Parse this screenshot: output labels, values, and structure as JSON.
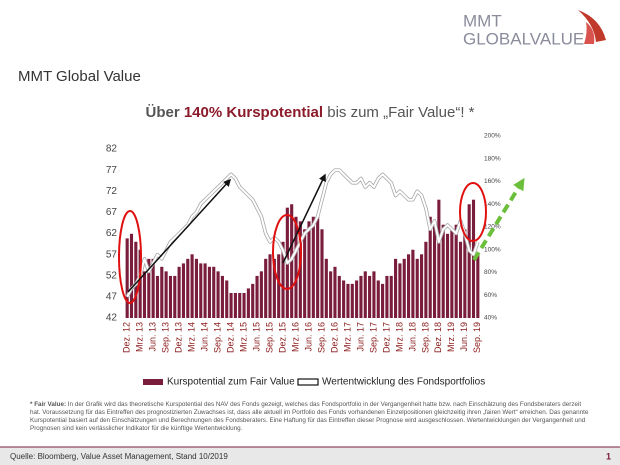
{
  "header": {
    "logo_line1": "MMT",
    "logo_line2": "GLOBALVALUE",
    "slide_title": "MMT Global Value"
  },
  "chart_data": {
    "type": "bar_line",
    "title": [
      "Über ",
      "140% Kurspotential",
      " bis zum „Fair Value“! *"
    ],
    "categories": [
      "Dez. 12",
      null,
      null,
      "Mrz. 13",
      null,
      null,
      "Jun. 13",
      null,
      null,
      "Sep. 13",
      null,
      null,
      "Dez. 13",
      null,
      null,
      "Mrz. 14",
      null,
      null,
      "Jun. 14",
      null,
      null,
      "Sep. 14",
      null,
      null,
      "Dez. 14",
      null,
      null,
      "Mrz. 15",
      null,
      null,
      "Jun. 15",
      null,
      null,
      "Sep. 15",
      null,
      null,
      "Dez. 15",
      null,
      null,
      "Mrz. 16",
      null,
      null,
      "Jun. 16",
      null,
      null,
      "Sep. 16",
      null,
      null,
      "Dez. 16",
      null,
      null,
      "Mrz. 17",
      null,
      null,
      "Jun. 17",
      null,
      null,
      "Sep. 17",
      null,
      null,
      "Dez. 17",
      null,
      null,
      "Mrz. 18",
      null,
      null,
      "Jun. 18",
      null,
      null,
      "Sep. 18",
      null,
      null,
      "Dez. 18",
      null,
      null,
      "Mrz. 19",
      null,
      null,
      "Jun. 19",
      null,
      null,
      "Sep. 19"
    ],
    "series": [
      {
        "name": "Kurspotential zum Fair Value",
        "color": "#7a1c3c",
        "axis": "y2",
        "kind": "bar",
        "values": [
          110,
          114,
          107,
          100,
          81,
          92,
          92,
          77,
          85,
          81,
          77,
          77,
          85,
          88,
          92,
          96,
          92,
          88,
          88,
          85,
          85,
          81,
          77,
          73,
          62,
          62,
          62,
          62,
          66,
          70,
          77,
          81,
          92,
          96,
          92,
          96,
          107,
          137,
          140,
          129,
          125,
          118,
          125,
          129,
          129,
          118,
          92,
          81,
          85,
          77,
          73,
          70,
          70,
          73,
          77,
          81,
          77,
          81,
          73,
          70,
          77,
          77,
          92,
          88,
          92,
          96,
          100,
          92,
          96,
          107,
          129,
          122,
          144,
          122,
          114,
          118,
          122,
          107,
          118,
          140,
          144,
          96
        ]
      },
      {
        "name": "Wertentwicklung des Fondsportfolios",
        "color": "#ffffff",
        "axis": "y",
        "kind": "line",
        "values": [
          47,
          49,
          50,
          52,
          56,
          53,
          55,
          57,
          56,
          58,
          60,
          61,
          62,
          63,
          64,
          66,
          67,
          69,
          70,
          71,
          72,
          73,
          74,
          75,
          76,
          75,
          73,
          72,
          71,
          70,
          68,
          66,
          62,
          60,
          61,
          60,
          58,
          55,
          56,
          58,
          60,
          62,
          63,
          64,
          66,
          70,
          74,
          76,
          77,
          77,
          76,
          75,
          74,
          74,
          75,
          73,
          74,
          73,
          75,
          76,
          75,
          74,
          71,
          72,
          71,
          70,
          70,
          72,
          71,
          68,
          63,
          65,
          60,
          63,
          64,
          63,
          62,
          65,
          62,
          58,
          57,
          60
        ]
      }
    ],
    "ylim": [
      42,
      82
    ],
    "yticks": [
      42,
      47,
      52,
      57,
      62,
      67,
      72,
      77,
      82
    ],
    "y2lim": [
      40,
      200
    ],
    "y2ticks": [
      {
        "value": 40,
        "label": "40%"
      },
      {
        "value": 60,
        "label": "60%"
      },
      {
        "value": 80,
        "label": "80%"
      },
      {
        "value": 100,
        "label": "100%"
      },
      {
        "value": 120,
        "label": "120%"
      },
      {
        "value": 140,
        "label": "140%"
      },
      {
        "value": 160,
        "label": "160%"
      },
      {
        "value": 180,
        "label": "180%"
      },
      {
        "value": 200,
        "label": "200%"
      }
    ],
    "legend": "bottom"
  },
  "footnote": {
    "label": "* Fair Value:",
    "text": " In der Grafik wird das theoretische Kurspotential des NAV des Fonds gezeigt, welches das Fondsportfolio in der Vergangenheit hatte bzw. nach Einschätzung des Fondsberaters derzeit hat. Voraussetzung für das Eintreffen des prognostizierten Zuwachses ist, dass alle aktuell im Portfolio des Fonds vorhandenen Einzelpositionen gleichzeitig ihren „fairen Wert“ erreichen. Das genannte Kurspotential basiert auf den Einschätzungen und Berechnungen des Fondsberaters. Eine Haftung für das Eintreffen dieser Prognose wird ausgeschlossen. Wertentwicklungen der Vergangenheit und Prognosen sind kein verlässlicher Indikator für die künftige Wertentwicklung."
  },
  "footer": {
    "source": "Quelle: Bloomberg, Value Asset Management, Stand 10/2019",
    "page": "1"
  }
}
